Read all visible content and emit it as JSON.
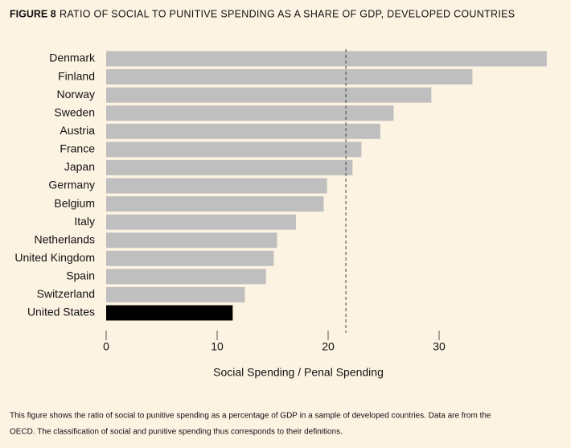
{
  "chart_data": {
    "type": "barh",
    "figure_label": "FIGURE 8",
    "title": "RATIO OF SOCIAL TO PUNITIVE SPENDING AS A SHARE OF GDP, DEVELOPED COUNTRIES",
    "xlabel": "Social Spending / Penal Spending",
    "categories": [
      "Denmark",
      "Finland",
      "Norway",
      "Sweden",
      "Austria",
      "France",
      "Japan",
      "Germany",
      "Belgium",
      "Italy",
      "Netherlands",
      "United Kingdom",
      "Spain",
      "Switzerland",
      "United States"
    ],
    "values": [
      39.7,
      33.0,
      29.3,
      25.9,
      24.7,
      23.0,
      22.2,
      19.9,
      19.6,
      17.1,
      15.4,
      15.1,
      14.4,
      12.5,
      11.4
    ],
    "colors": [
      "#bfbfbf",
      "#bfbfbf",
      "#bfbfbf",
      "#bfbfbf",
      "#bfbfbf",
      "#bfbfbf",
      "#bfbfbf",
      "#bfbfbf",
      "#bfbfbf",
      "#bfbfbf",
      "#bfbfbf",
      "#bfbfbf",
      "#bfbfbf",
      "#bfbfbf",
      "#000000"
    ],
    "reference_line": 21.6,
    "xlim": [
      0,
      40
    ],
    "xticks": [
      0,
      10,
      20,
      30
    ],
    "caption": [
      "This figure shows the ratio of social to punitive spending as a percentage of GDP in a sample of developed countries. Data are from the",
      "OECD. The classification of social and punitive spending thus corresponds to their definitions."
    ]
  }
}
